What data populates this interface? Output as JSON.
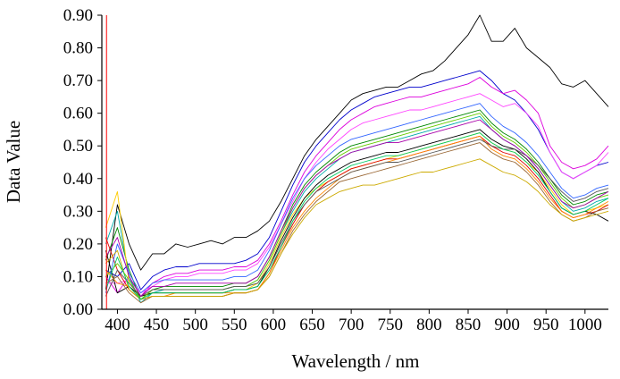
{
  "chart_data": {
    "type": "line",
    "title": "",
    "xlabel": "Wavelength / nm",
    "ylabel": "Data Value",
    "xlim": [
      380,
      1030
    ],
    "ylim": [
      0,
      0.9
    ],
    "x_ticks": [
      400,
      450,
      500,
      550,
      600,
      650,
      700,
      750,
      800,
      850,
      900,
      950,
      1000
    ],
    "x_tick_labels": [
      "400",
      "450",
      "500",
      "550",
      "600",
      "650",
      "700",
      "750",
      "800",
      "850",
      "900",
      "950",
      "1000"
    ],
    "y_ticks": [
      0,
      0.1,
      0.2,
      0.3,
      0.4,
      0.5,
      0.6,
      0.7,
      0.8,
      0.9
    ],
    "y_tick_labels": [
      "0.00",
      "0.10",
      "0.20",
      "0.30",
      "0.40",
      "0.50",
      "0.60",
      "0.70",
      "0.80",
      "0.90"
    ],
    "grid": false,
    "legend": "none",
    "reference_line": {
      "x": 386,
      "color": "#ff0000"
    },
    "x": [
      385,
      400,
      415,
      430,
      445,
      460,
      475,
      490,
      505,
      520,
      535,
      550,
      565,
      580,
      595,
      610,
      625,
      640,
      655,
      670,
      685,
      700,
      715,
      730,
      745,
      760,
      775,
      790,
      805,
      820,
      835,
      850,
      865,
      880,
      895,
      910,
      925,
      940,
      955,
      970,
      985,
      1000,
      1015,
      1030
    ],
    "series": [
      {
        "color": "#000000",
        "values": [
          0.06,
          0.32,
          0.2,
          0.12,
          0.17,
          0.17,
          0.2,
          0.19,
          0.2,
          0.21,
          0.2,
          0.22,
          0.22,
          0.24,
          0.27,
          0.33,
          0.4,
          0.47,
          0.52,
          0.56,
          0.6,
          0.64,
          0.66,
          0.67,
          0.68,
          0.68,
          0.7,
          0.72,
          0.73,
          0.76,
          0.8,
          0.84,
          0.9,
          0.82,
          0.82,
          0.86,
          0.8,
          0.77,
          0.74,
          0.69,
          0.68,
          0.7,
          0.66,
          0.62
        ]
      },
      {
        "color": "#0000cc",
        "values": [
          0.12,
          0.1,
          0.14,
          0.06,
          0.1,
          0.12,
          0.13,
          0.13,
          0.14,
          0.14,
          0.14,
          0.14,
          0.15,
          0.17,
          0.22,
          0.3,
          0.38,
          0.45,
          0.5,
          0.54,
          0.58,
          0.61,
          0.63,
          0.65,
          0.66,
          0.67,
          0.68,
          0.68,
          0.69,
          0.7,
          0.71,
          0.72,
          0.73,
          0.7,
          0.66,
          0.64,
          0.6,
          0.55,
          0.48,
          0.42,
          0.4,
          0.42,
          0.44,
          0.45
        ]
      },
      {
        "color": "#dd00dd",
        "values": [
          0.1,
          0.05,
          0.1,
          0.04,
          0.08,
          0.1,
          0.11,
          0.11,
          0.12,
          0.12,
          0.12,
          0.13,
          0.13,
          0.15,
          0.2,
          0.27,
          0.35,
          0.42,
          0.47,
          0.51,
          0.55,
          0.58,
          0.6,
          0.62,
          0.63,
          0.64,
          0.65,
          0.65,
          0.66,
          0.67,
          0.68,
          0.69,
          0.71,
          0.68,
          0.66,
          0.67,
          0.64,
          0.6,
          0.5,
          0.45,
          0.43,
          0.44,
          0.46,
          0.5
        ]
      },
      {
        "color": "#ff44ff",
        "values": [
          0.08,
          0.08,
          0.09,
          0.05,
          0.07,
          0.09,
          0.1,
          0.1,
          0.11,
          0.11,
          0.11,
          0.12,
          0.12,
          0.14,
          0.19,
          0.26,
          0.33,
          0.4,
          0.45,
          0.49,
          0.52,
          0.55,
          0.57,
          0.58,
          0.59,
          0.6,
          0.61,
          0.61,
          0.62,
          0.63,
          0.64,
          0.65,
          0.66,
          0.64,
          0.62,
          0.63,
          0.6,
          0.56,
          0.48,
          0.42,
          0.4,
          0.42,
          0.44,
          0.48
        ]
      },
      {
        "color": "#008800",
        "values": [
          0.15,
          0.25,
          0.12,
          0.03,
          0.06,
          0.07,
          0.07,
          0.07,
          0.07,
          0.07,
          0.07,
          0.08,
          0.08,
          0.1,
          0.16,
          0.24,
          0.32,
          0.38,
          0.42,
          0.45,
          0.48,
          0.5,
          0.51,
          0.52,
          0.53,
          0.54,
          0.55,
          0.56,
          0.57,
          0.58,
          0.59,
          0.6,
          0.61,
          0.57,
          0.54,
          0.52,
          0.49,
          0.45,
          0.4,
          0.35,
          0.32,
          0.33,
          0.35,
          0.36
        ]
      },
      {
        "color": "#00aaaa",
        "values": [
          0.2,
          0.3,
          0.1,
          0.02,
          0.05,
          0.06,
          0.06,
          0.06,
          0.06,
          0.06,
          0.06,
          0.07,
          0.07,
          0.09,
          0.15,
          0.23,
          0.3,
          0.36,
          0.4,
          0.43,
          0.46,
          0.48,
          0.49,
          0.5,
          0.51,
          0.52,
          0.53,
          0.54,
          0.55,
          0.56,
          0.57,
          0.58,
          0.59,
          0.55,
          0.52,
          0.5,
          0.47,
          0.43,
          0.38,
          0.33,
          0.3,
          0.31,
          0.33,
          0.34
        ]
      },
      {
        "color": "#ffcc00",
        "values": [
          0.25,
          0.36,
          0.08,
          0.04,
          0.05,
          0.05,
          0.05,
          0.05,
          0.05,
          0.05,
          0.05,
          0.06,
          0.06,
          0.08,
          0.14,
          0.22,
          0.29,
          0.34,
          0.37,
          0.39,
          0.41,
          0.43,
          0.44,
          0.45,
          0.46,
          0.47,
          0.48,
          0.49,
          0.5,
          0.51,
          0.52,
          0.53,
          0.54,
          0.51,
          0.49,
          0.48,
          0.45,
          0.42,
          0.37,
          0.32,
          0.29,
          0.3,
          0.31,
          0.32
        ]
      },
      {
        "color": "#dd0000",
        "values": [
          0.22,
          0.12,
          0.06,
          0.03,
          0.04,
          0.04,
          0.04,
          0.04,
          0.04,
          0.04,
          0.04,
          0.05,
          0.05,
          0.06,
          0.11,
          0.19,
          0.26,
          0.32,
          0.36,
          0.39,
          0.41,
          0.43,
          0.44,
          0.45,
          0.46,
          0.46,
          0.47,
          0.48,
          0.49,
          0.5,
          0.51,
          0.52,
          0.53,
          0.5,
          0.48,
          0.47,
          0.44,
          0.4,
          0.35,
          0.3,
          0.28,
          0.29,
          0.3,
          0.32
        ]
      },
      {
        "color": "#000000",
        "values": [
          0.18,
          0.05,
          0.07,
          0.04,
          0.05,
          0.05,
          0.05,
          0.05,
          0.05,
          0.05,
          0.05,
          0.06,
          0.06,
          0.07,
          0.13,
          0.21,
          0.28,
          0.34,
          0.38,
          0.41,
          0.43,
          0.45,
          0.46,
          0.47,
          0.48,
          0.48,
          0.49,
          0.5,
          0.51,
          0.52,
          0.53,
          0.54,
          0.55,
          0.52,
          0.5,
          0.49,
          0.46,
          0.42,
          0.36,
          0.31,
          0.29,
          0.3,
          0.29,
          0.27
        ]
      },
      {
        "color": "#66cc00",
        "values": [
          0.1,
          0.14,
          0.09,
          0.03,
          0.06,
          0.06,
          0.06,
          0.06,
          0.06,
          0.06,
          0.06,
          0.07,
          0.07,
          0.09,
          0.15,
          0.23,
          0.31,
          0.37,
          0.41,
          0.44,
          0.47,
          0.49,
          0.5,
          0.51,
          0.52,
          0.53,
          0.54,
          0.55,
          0.56,
          0.57,
          0.58,
          0.59,
          0.6,
          0.56,
          0.53,
          0.51,
          0.48,
          0.44,
          0.39,
          0.34,
          0.31,
          0.32,
          0.34,
          0.35
        ]
      },
      {
        "color": "#3366ff",
        "values": [
          0.05,
          0.2,
          0.11,
          0.05,
          0.08,
          0.09,
          0.09,
          0.09,
          0.09,
          0.09,
          0.09,
          0.1,
          0.1,
          0.12,
          0.18,
          0.26,
          0.34,
          0.4,
          0.44,
          0.47,
          0.5,
          0.52,
          0.53,
          0.54,
          0.55,
          0.56,
          0.57,
          0.58,
          0.59,
          0.6,
          0.61,
          0.62,
          0.63,
          0.59,
          0.56,
          0.54,
          0.51,
          0.47,
          0.42,
          0.37,
          0.34,
          0.35,
          0.37,
          0.38
        ]
      },
      {
        "color": "#ff8800",
        "values": [
          0.12,
          0.08,
          0.07,
          0.03,
          0.04,
          0.04,
          0.05,
          0.05,
          0.05,
          0.05,
          0.05,
          0.05,
          0.05,
          0.06,
          0.11,
          0.18,
          0.25,
          0.3,
          0.34,
          0.37,
          0.4,
          0.42,
          0.43,
          0.44,
          0.45,
          0.46,
          0.47,
          0.48,
          0.49,
          0.5,
          0.51,
          0.52,
          0.53,
          0.49,
          0.47,
          0.46,
          0.43,
          0.39,
          0.34,
          0.3,
          0.28,
          0.29,
          0.31,
          0.33
        ]
      },
      {
        "color": "#996633",
        "values": [
          0.08,
          0.1,
          0.05,
          0.02,
          0.04,
          0.04,
          0.04,
          0.04,
          0.04,
          0.04,
          0.04,
          0.05,
          0.05,
          0.06,
          0.1,
          0.17,
          0.24,
          0.29,
          0.33,
          0.36,
          0.39,
          0.4,
          0.41,
          0.42,
          0.43,
          0.44,
          0.45,
          0.46,
          0.47,
          0.48,
          0.49,
          0.5,
          0.51,
          0.48,
          0.46,
          0.45,
          0.42,
          0.38,
          0.33,
          0.29,
          0.27,
          0.28,
          0.3,
          0.31
        ]
      },
      {
        "color": "#ccaa00",
        "values": [
          0.14,
          0.18,
          0.06,
          0.03,
          0.04,
          0.04,
          0.04,
          0.04,
          0.04,
          0.04,
          0.04,
          0.05,
          0.05,
          0.06,
          0.1,
          0.17,
          0.23,
          0.28,
          0.32,
          0.34,
          0.36,
          0.37,
          0.38,
          0.38,
          0.39,
          0.4,
          0.41,
          0.42,
          0.42,
          0.43,
          0.44,
          0.45,
          0.46,
          0.44,
          0.42,
          0.41,
          0.39,
          0.36,
          0.32,
          0.29,
          0.27,
          0.28,
          0.29,
          0.3
        ]
      },
      {
        "color": "#555555",
        "values": [
          0.04,
          0.12,
          0.08,
          0.04,
          0.06,
          0.06,
          0.06,
          0.06,
          0.06,
          0.06,
          0.06,
          0.07,
          0.07,
          0.08,
          0.13,
          0.2,
          0.27,
          0.32,
          0.36,
          0.38,
          0.4,
          0.42,
          0.43,
          0.44,
          0.45,
          0.45,
          0.46,
          0.47,
          0.48,
          0.49,
          0.5,
          0.51,
          0.52,
          0.5,
          0.49,
          0.49,
          0.47,
          0.44,
          0.4,
          0.36,
          0.33,
          0.34,
          0.36,
          0.37
        ]
      },
      {
        "color": "#aa00aa",
        "values": [
          0.16,
          0.22,
          0.1,
          0.04,
          0.07,
          0.07,
          0.08,
          0.08,
          0.08,
          0.08,
          0.08,
          0.08,
          0.08,
          0.1,
          0.16,
          0.24,
          0.31,
          0.37,
          0.41,
          0.44,
          0.46,
          0.48,
          0.49,
          0.5,
          0.51,
          0.51,
          0.52,
          0.53,
          0.54,
          0.55,
          0.56,
          0.57,
          0.58,
          0.55,
          0.52,
          0.5,
          0.47,
          0.43,
          0.38,
          0.33,
          0.31,
          0.32,
          0.34,
          0.36
        ]
      },
      {
        "color": "#00cc66",
        "values": [
          0.06,
          0.16,
          0.07,
          0.03,
          0.05,
          0.05,
          0.05,
          0.05,
          0.05,
          0.05,
          0.05,
          0.06,
          0.06,
          0.07,
          0.12,
          0.19,
          0.27,
          0.33,
          0.37,
          0.4,
          0.42,
          0.44,
          0.45,
          0.46,
          0.47,
          0.47,
          0.48,
          0.49,
          0.5,
          0.51,
          0.52,
          0.53,
          0.54,
          0.51,
          0.49,
          0.48,
          0.45,
          0.41,
          0.36,
          0.31,
          0.29,
          0.3,
          0.32,
          0.34
        ]
      }
    ]
  }
}
